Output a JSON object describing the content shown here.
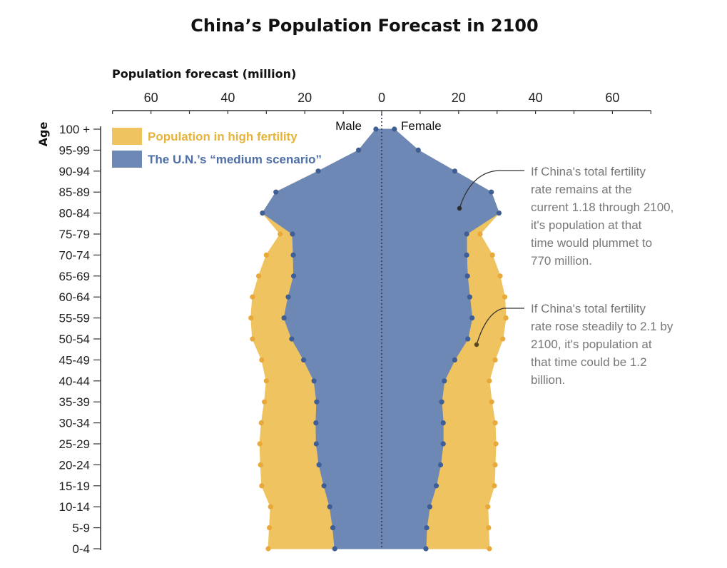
{
  "chart_data": {
    "type": "area",
    "title": "China’s Population Forecast in 2100",
    "xlabel": "Population forecast (million)",
    "ylabel": "Age",
    "x_ticks": [
      60,
      40,
      20,
      0,
      20,
      40,
      60
    ],
    "xlim": [
      -70,
      70
    ],
    "side_labels": {
      "left": "Male",
      "right": "Female"
    },
    "categories": [
      "0-4",
      "5-9",
      "10-14",
      "15-19",
      "20-24",
      "25-29",
      "30-34",
      "35-39",
      "40-44",
      "45-49",
      "50-54",
      "55-59",
      "60-64",
      "65-69",
      "70-74",
      "75-79",
      "80-84",
      "85-89",
      "90-94",
      "95-99",
      "100 +"
    ],
    "series": [
      {
        "name": "Population in high fertility",
        "color": "#efc35f",
        "dot_color": "#e8a93a",
        "male": [
          29.5,
          29.2,
          28.9,
          31.2,
          31.5,
          31.7,
          31.3,
          30.5,
          30.0,
          31.2,
          33.6,
          34.0,
          33.6,
          32.0,
          30.0,
          26.4,
          31.0,
          27.5,
          16.5,
          6.0,
          1.5
        ],
        "female": [
          28.0,
          27.8,
          27.6,
          29.3,
          29.5,
          29.7,
          29.5,
          28.6,
          28.0,
          29.5,
          31.5,
          32.3,
          32.0,
          30.8,
          28.8,
          25.6,
          30.5,
          28.5,
          19.0,
          9.5,
          3.3
        ]
      },
      {
        "name": "The U.N.’s “medium scenario”",
        "color": "#6d88b4",
        "dot_color": "#3e5e97",
        "male": [
          12.2,
          12.7,
          13.5,
          15.0,
          16.3,
          17.0,
          17.1,
          16.9,
          17.6,
          20.3,
          23.4,
          25.4,
          24.3,
          22.9,
          23.0,
          23.2,
          31.0,
          27.5,
          16.5,
          6.0,
          1.5
        ],
        "female": [
          11.5,
          11.7,
          12.5,
          14.2,
          15.3,
          16.0,
          16.0,
          15.6,
          16.3,
          19.0,
          22.4,
          23.5,
          22.9,
          22.3,
          22.1,
          22.1,
          30.5,
          28.5,
          19.0,
          9.5,
          3.3
        ]
      }
    ],
    "legend_position": "top-left",
    "annotations": [
      {
        "lines": [
          "If China's total fertility",
          "rate remains at the",
          "current 1.18 through 2100,",
          "it's population at that",
          "time would plummet to",
          "770 million."
        ]
      },
      {
        "lines": [
          "If China's total fertility",
          "rate rose steadily to 2.1 by",
          "2100, it's population at",
          "that time could be 1.2",
          "billion."
        ]
      }
    ]
  }
}
